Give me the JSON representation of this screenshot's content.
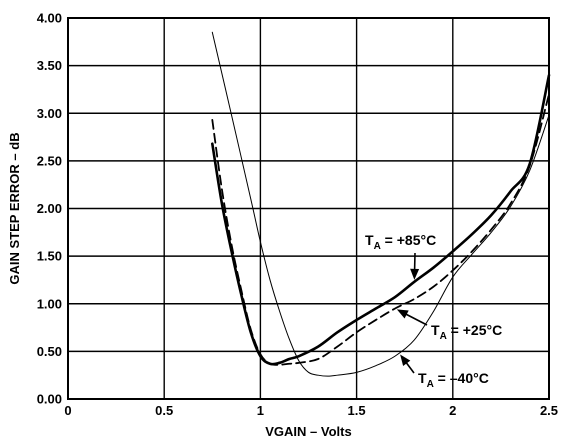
{
  "chart_data": {
    "type": "line",
    "title": "",
    "xlabel": "VGAIN – Volts",
    "ylabel": "GAIN STEP ERROR – dB",
    "xlim": [
      0,
      2.5
    ],
    "ylim": [
      0,
      4.0
    ],
    "x_ticks": [
      "0",
      "0.5",
      "1",
      "1.5",
      "2",
      "2.5"
    ],
    "y_ticks": [
      "0.00",
      "0.50",
      "1.00",
      "1.50",
      "2.00",
      "2.50",
      "3.00",
      "3.50",
      "4.00"
    ],
    "grid": true,
    "series": [
      {
        "name": "T_A = +85°C",
        "style": "thick-solid",
        "x": [
          0.75,
          0.8,
          0.85,
          0.9,
          0.95,
          1.0,
          1.05,
          1.1,
          1.15,
          1.2,
          1.3,
          1.4,
          1.5,
          1.6,
          1.7,
          1.8,
          1.9,
          2.0,
          2.1,
          2.2,
          2.3,
          2.4,
          2.5
        ],
        "values": [
          2.68,
          2.05,
          1.55,
          1.1,
          0.7,
          0.45,
          0.37,
          0.38,
          0.42,
          0.45,
          0.55,
          0.7,
          0.83,
          0.95,
          1.07,
          1.23,
          1.38,
          1.55,
          1.73,
          1.93,
          2.18,
          2.47,
          3.4
        ]
      },
      {
        "name": "T_A = +25°C",
        "style": "dashed",
        "x": [
          0.75,
          0.8,
          0.85,
          0.9,
          0.95,
          1.0,
          1.05,
          1.1,
          1.15,
          1.2,
          1.3,
          1.4,
          1.5,
          1.6,
          1.7,
          1.8,
          1.9,
          2.0,
          2.1,
          2.2,
          2.3,
          2.4,
          2.5
        ],
        "values": [
          2.93,
          2.2,
          1.62,
          1.15,
          0.73,
          0.47,
          0.37,
          0.36,
          0.37,
          0.38,
          0.42,
          0.55,
          0.7,
          0.83,
          0.95,
          1.05,
          1.18,
          1.35,
          1.55,
          1.78,
          2.05,
          2.45,
          3.2
        ]
      },
      {
        "name": "T_A = –40°C",
        "style": "thin-solid",
        "x": [
          0.75,
          0.85,
          0.95,
          1.0,
          1.05,
          1.1,
          1.15,
          1.2,
          1.25,
          1.3,
          1.35,
          1.4,
          1.5,
          1.6,
          1.7,
          1.8,
          1.9,
          2.0,
          2.1,
          2.2,
          2.3,
          2.4,
          2.5
        ],
        "values": [
          3.85,
          2.98,
          2.1,
          1.65,
          1.25,
          0.92,
          0.63,
          0.4,
          0.28,
          0.25,
          0.24,
          0.25,
          0.28,
          0.35,
          0.45,
          0.62,
          0.92,
          1.28,
          1.52,
          1.75,
          2.02,
          2.4,
          2.98
        ]
      }
    ],
    "annotations": [
      {
        "main": "T",
        "sub": "A",
        "rest": " = +85°C",
        "target_series": 0,
        "at_x": 1.8
      },
      {
        "main": "T",
        "sub": "A",
        "rest": " = +25°C",
        "target_series": 1,
        "at_x": 1.7
      },
      {
        "main": "T",
        "sub": "A",
        "rest": " = –40°C",
        "target_series": 2,
        "at_x": 1.72
      }
    ]
  }
}
